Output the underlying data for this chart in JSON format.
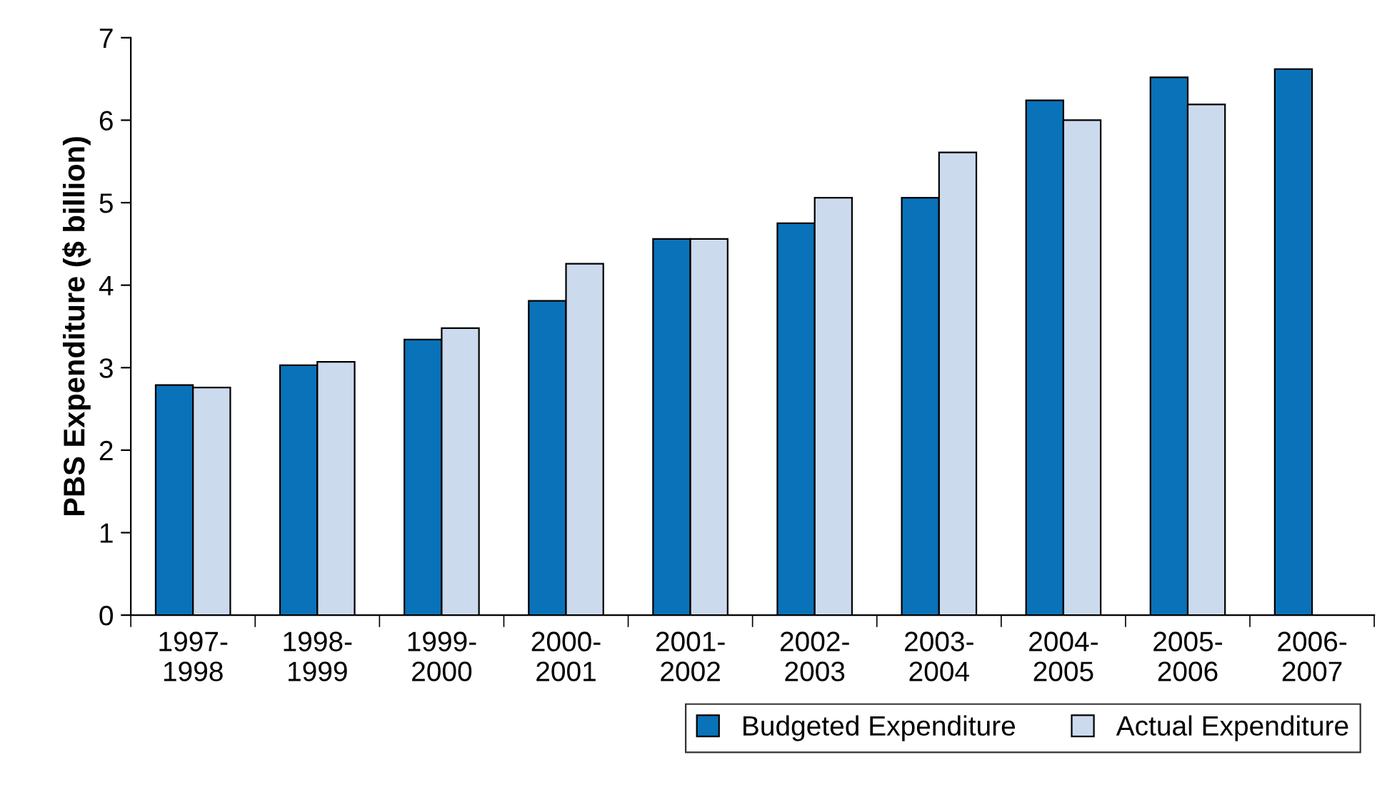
{
  "chart_data": {
    "type": "bar",
    "ylabel": "PBS Expenditure ($ billion)",
    "categories": [
      "1997-1998",
      "1998-1999",
      "1999-2000",
      "2000-2001",
      "2001-2002",
      "2002-2003",
      "2003-2004",
      "2004-2005",
      "2005-2006",
      "2006-2007"
    ],
    "series": [
      {
        "name": "Budgeted Expenditure",
        "color": "#0a72b8",
        "values": [
          2.79,
          3.03,
          3.34,
          3.81,
          4.56,
          4.75,
          5.06,
          6.24,
          6.52,
          6.62
        ]
      },
      {
        "name": "Actual Expenditure",
        "color": "#ccdaee",
        "values": [
          2.76,
          3.07,
          3.48,
          4.26,
          4.56,
          5.06,
          5.61,
          6.0,
          6.19,
          null
        ]
      }
    ],
    "ylim": [
      0,
      7
    ],
    "yticks": [
      0,
      1,
      2,
      3,
      4,
      5,
      6,
      7
    ],
    "grid": false,
    "legend": "bottom right"
  }
}
